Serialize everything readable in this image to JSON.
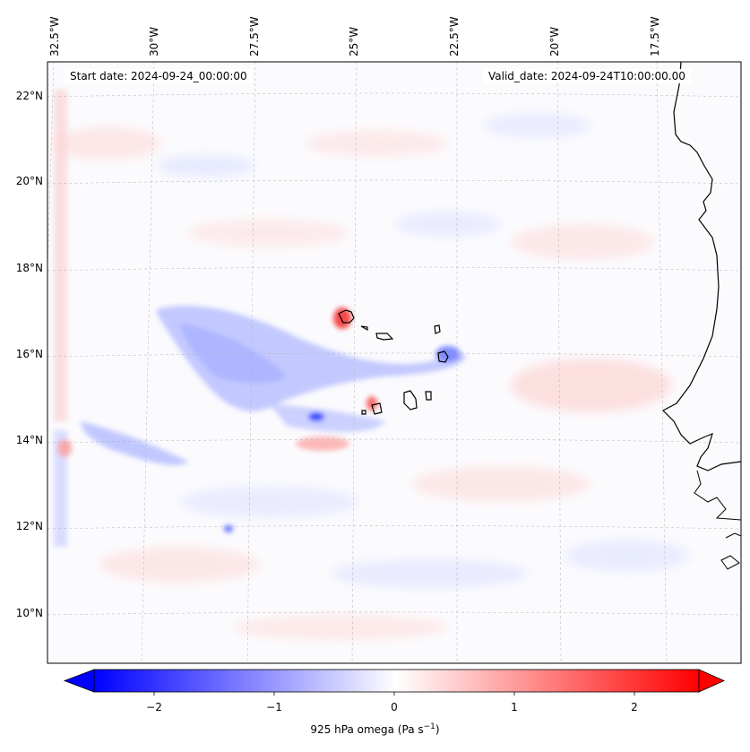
{
  "map": {
    "start_date": "Start date: 2024-09-24_00:00:00",
    "valid_date": "Valid_date: 2024-09-24T10:00:00.00",
    "lon_labels": [
      "32.5°W",
      "30°W",
      "27.5°W",
      "25°W",
      "22.5°W",
      "20°W",
      "17.5°W"
    ],
    "lat_labels": [
      "22°N",
      "20°N",
      "18°N",
      "16°N",
      "14°N",
      "12°N",
      "10°N"
    ],
    "colors": {
      "negative": "#0000ff",
      "positive": "#ff0000",
      "neutral": "#ffffff",
      "coastline": "#000000",
      "grid": "#b0b0b0"
    }
  },
  "colorbar": {
    "label_text": "925 hPa omega (Pa s",
    "label_exp": "−1",
    "label_close": ")",
    "ticks": [
      "−2",
      "−1",
      "0",
      "1",
      "2"
    ],
    "range": [
      -2.5,
      2.5
    ],
    "extend": "both"
  }
}
